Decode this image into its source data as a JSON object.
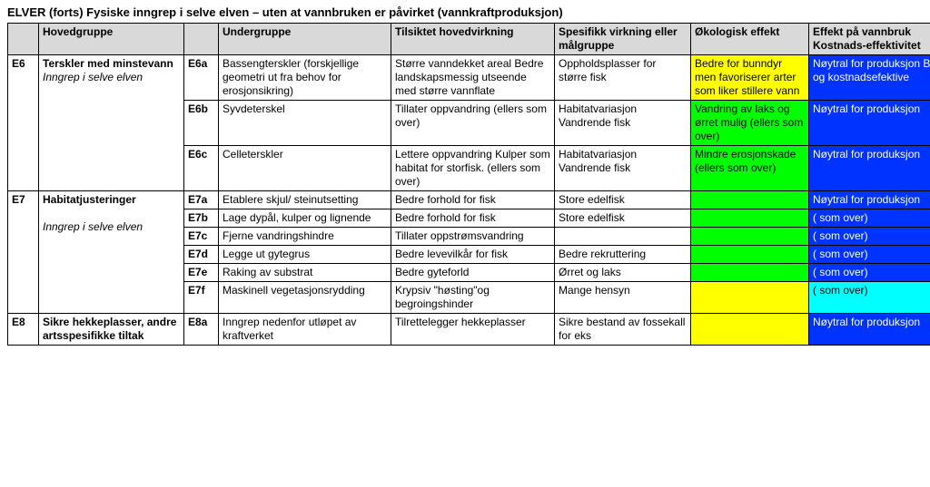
{
  "title": "ELVER (forts) Fysiske inngrep i selve elven – uten at vannbruken er påvirket (vannkraftproduksjon)",
  "headers": {
    "code": "",
    "hoved": "Hovedgruppe",
    "subcode": "",
    "under": "Undergruppe",
    "tilsiktet": "Tilsiktet hovedvirkning",
    "spesifikk": "Spesifikk virkning eller målgruppe",
    "oko": "Økologisk  effekt",
    "effekt": "Effekt på vannbruk Kostnads-effektivitet"
  },
  "colors": {
    "yellow": "#ffff00",
    "green": "#00ff00",
    "blue": "#0033ff",
    "cyan": "#00ffff",
    "header_bg": "#d9d9d9",
    "text_white": "#ffffff",
    "text_black": "#000000"
  },
  "rows": {
    "e6": {
      "code": "E6",
      "hoved_line1": "Terskler med minstevann",
      "hoved_line2": "Inngrep i selve elven",
      "a": {
        "sub": "E6a",
        "under": "Bassengterskler (forskjellige geometri ut fra behov for erosjonsikring)",
        "tils": "Større vanndekket areal Bedre landskapsmessig utseende med større vannflate",
        "spes": "Oppholdsplasser for større fisk",
        "oko": "Bedre for bunndyr men favoriserer arter som liker stillere vann",
        "eff": "Nøytral for produksjon Billig og kostnadsefektive"
      },
      "b": {
        "sub": "E6b",
        "under": "Syvdeterskel",
        "tils": "Tillater oppvandring (ellers som over)",
        "spes": "Habitatvariasjon Vandrende fisk",
        "oko": "Vandring av laks og ørret mulig (ellers som over)",
        "eff": "Nøytral for produksjon"
      },
      "c": {
        "sub": "E6c",
        "under": "Celleterskler",
        "tils": "Lettere oppvandring Kulper som habitat for storfisk. (ellers som over)",
        "spes": "Habitatvariasjon Vandrende fisk",
        "oko": "Mindre erosjonskade (ellers som over)",
        "eff": "Nøytral for produksjon"
      }
    },
    "e7": {
      "code": "E7",
      "hoved_line1": "Habitatjusteringer",
      "hoved_line2": "Inngrep i selve elven",
      "a": {
        "sub": "E7a",
        "under": "Etablere skjul/ steinutsetting",
        "tils": "Bedre forhold for fisk",
        "spes": "Store edelfisk",
        "oko": "",
        "eff": "Nøytral for produksjon"
      },
      "b": {
        "sub": "E7b",
        "under": "Lage dypål, kulper og lignende",
        "tils": "Bedre forhold for fisk",
        "spes": "Store edelfisk",
        "oko": "",
        "eff": "( som over)"
      },
      "c": {
        "sub": "E7c",
        "under": "Fjerne vandringshindre",
        "tils": "Tillater oppstrømsvandring",
        "spes": "",
        "oko": "",
        "eff": "( som over)"
      },
      "d": {
        "sub": "E7d",
        "under": "Legge ut gytegrus",
        "tils": "Bedre levevilkår for fisk",
        "spes": "Bedre rekruttering",
        "oko": "",
        "eff": "( som over)"
      },
      "e": {
        "sub": "E7e",
        "under": " Raking av substrat",
        "tils": " Bedre gyteforld",
        "spes": "Ørret og laks",
        "oko": "",
        "eff": "( som over)"
      },
      "f": {
        "sub": "E7f",
        "under": "Maskinell vegetasjonsrydding",
        "tils": "Krypsiv \"høsting\"og begroingshinder",
        "spes": "Mange hensyn",
        "oko": "",
        "eff": "( som over)"
      }
    },
    "e8": {
      "code": "E8",
      "hoved": "Sikre hekkeplasser, andre artsspesifikke tiltak",
      "a": {
        "sub": "E8a",
        "under": "Inngrep  nedenfor utløpet  av kraftverket",
        "tils": "Tilrettelegger hekkeplasser",
        "spes": "Sikre bestand av fossekall for eks",
        "oko": "",
        "eff": "Nøytral for produksjon"
      }
    }
  }
}
